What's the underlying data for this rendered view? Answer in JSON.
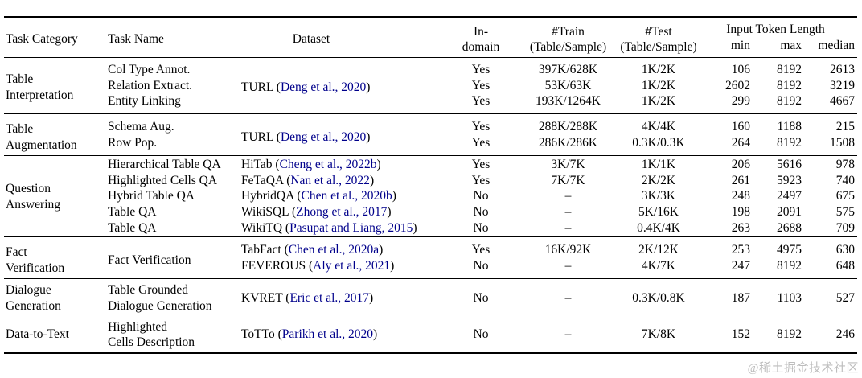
{
  "colors": {
    "citation": "#00008B",
    "watermark": "#bdbdbd"
  },
  "watermark": "@稀土掘金技术社区",
  "header": {
    "task_category": "Task Category",
    "task_name": "Task Name",
    "dataset": "Dataset",
    "in_domain": "In-\ndomain",
    "train": "#Train\n(Table/Sample)",
    "test": "#Test\n(Table/Sample)",
    "token_length": "Input Token Length",
    "min": "min",
    "max": "max",
    "median": "median"
  },
  "groups": [
    {
      "category": "Table\nInterpretation",
      "dataset": {
        "name": "TURL",
        "cite": "Deng et al., 2020"
      },
      "rows": [
        {
          "task": "Col Type Annot.",
          "in_domain": "Yes",
          "train": "397K/628K",
          "test": "1K/2K",
          "min": "106",
          "max": "8192",
          "median": "2613"
        },
        {
          "task": "Relation Extract.",
          "in_domain": "Yes",
          "train": "53K/63K",
          "test": "1K/2K",
          "min": "2602",
          "max": "8192",
          "median": "3219"
        },
        {
          "task": "Entity Linking",
          "in_domain": "Yes",
          "train": "193K/1264K",
          "test": "1K/2K",
          "min": "299",
          "max": "8192",
          "median": "4667"
        }
      ]
    },
    {
      "category": "Table\nAugmentation",
      "dataset": {
        "name": "TURL",
        "cite": "Deng et al., 2020"
      },
      "rows": [
        {
          "task": "Schema Aug.",
          "in_domain": "Yes",
          "train": "288K/288K",
          "test": "4K/4K",
          "min": "160",
          "max": "1188",
          "median": "215"
        },
        {
          "task": "Row Pop.",
          "in_domain": "Yes",
          "train": "286K/286K",
          "test": "0.3K/0.3K",
          "min": "264",
          "max": "8192",
          "median": "1508"
        }
      ]
    },
    {
      "category": "Question\nAnswering",
      "rows": [
        {
          "task": "Hierarchical Table QA",
          "dataset": {
            "name": "HiTab",
            "cite": "Cheng et al., 2022b"
          },
          "in_domain": "Yes",
          "train": "3K/7K",
          "test": "1K/1K",
          "min": "206",
          "max": "5616",
          "median": "978"
        },
        {
          "task": "Highlighted Cells QA",
          "dataset": {
            "name": "FeTaQA",
            "cite": "Nan et al., 2022"
          },
          "in_domain": "Yes",
          "train": "7K/7K",
          "test": "2K/2K",
          "min": "261",
          "max": "5923",
          "median": "740"
        },
        {
          "task": "Hybrid Table QA",
          "dataset": {
            "name": "HybridQA",
            "cite": "Chen et al., 2020b"
          },
          "in_domain": "No",
          "train": "–",
          "test": "3K/3K",
          "min": "248",
          "max": "2497",
          "median": "675"
        },
        {
          "task": "Table QA",
          "dataset": {
            "name": "WikiSQL",
            "cite": "Zhong et al., 2017"
          },
          "in_domain": "No",
          "train": "–",
          "test": "5K/16K",
          "min": "198",
          "max": "2091",
          "median": "575"
        },
        {
          "task": "Table QA",
          "dataset": {
            "name": "WikiTQ",
            "cite": "Pasupat and Liang, 2015"
          },
          "in_domain": "No",
          "train": "–",
          "test": "0.4K/4K",
          "min": "263",
          "max": "2688",
          "median": "709"
        }
      ]
    },
    {
      "category": "Fact\nVerification",
      "task": "Fact Verification",
      "rows": [
        {
          "dataset": {
            "name": "TabFact",
            "cite": "Chen et al., 2020a"
          },
          "in_domain": "Yes",
          "train": "16K/92K",
          "test": "2K/12K",
          "min": "253",
          "max": "4975",
          "median": "630"
        },
        {
          "dataset": {
            "name": "FEVEROUS",
            "cite": "Aly et al., 2021"
          },
          "in_domain": "No",
          "train": "–",
          "test": "4K/7K",
          "min": "247",
          "max": "8192",
          "median": "648"
        }
      ]
    },
    {
      "category": "Dialogue\nGeneration",
      "rows": [
        {
          "task": "Table Grounded\nDialogue Generation",
          "dataset": {
            "name": "KVRET",
            "cite": "Eric et al., 2017"
          },
          "in_domain": "No",
          "train": "–",
          "test": "0.3K/0.8K",
          "min": "187",
          "max": "1103",
          "median": "527"
        }
      ]
    },
    {
      "category": "Data-to-Text",
      "rows": [
        {
          "task": "Highlighted\nCells Description",
          "dataset": {
            "name": "ToTTo",
            "cite": "Parikh et al., 2020"
          },
          "in_domain": "No",
          "train": "–",
          "test": "7K/8K",
          "min": "152",
          "max": "8192",
          "median": "246"
        }
      ]
    }
  ]
}
